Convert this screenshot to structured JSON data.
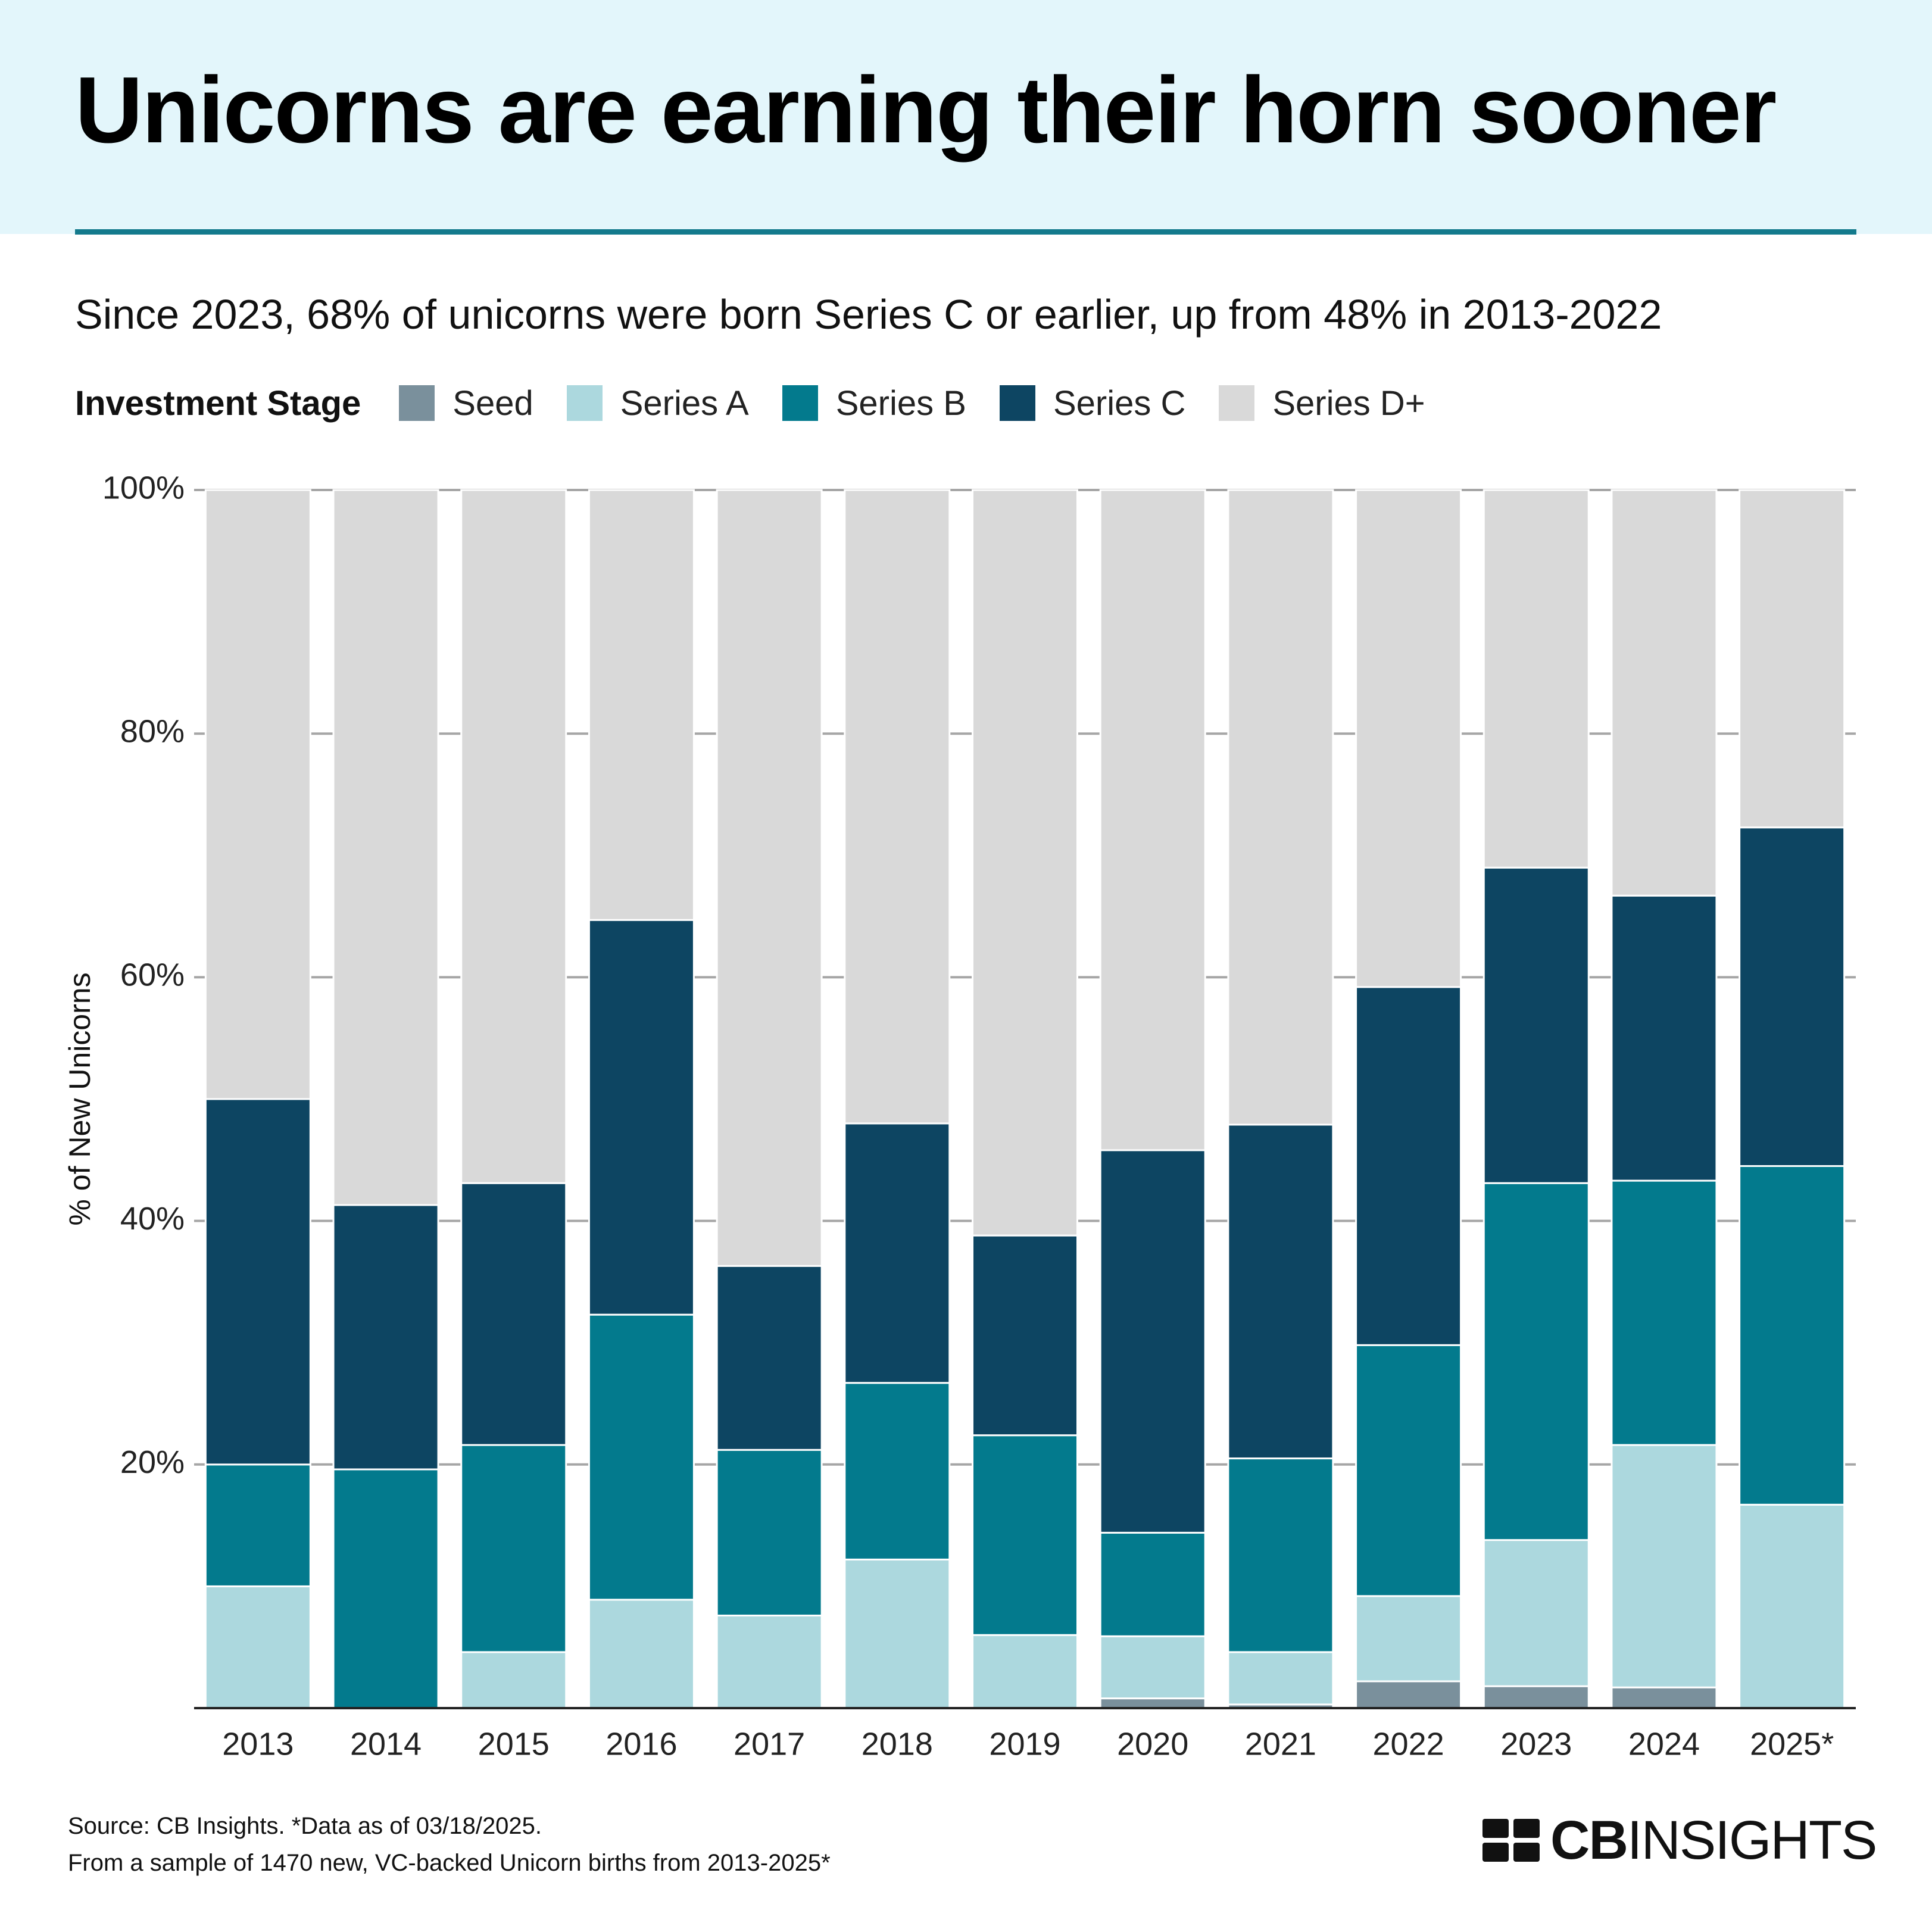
{
  "header": {
    "title": "Unicorns are earning their horn sooner",
    "subtitle": "Since 2023, 68% of unicorns were born Series C or earlier, up from 48% in 2013-2022"
  },
  "legend": {
    "title": "Investment Stage",
    "items": [
      {
        "label": "Seed",
        "color": "#7a909c"
      },
      {
        "label": "Series A",
        "color": "#acd8de"
      },
      {
        "label": "Series B",
        "color": "#037a8d"
      },
      {
        "label": "Series C",
        "color": "#0d4562"
      },
      {
        "label": "Series D+",
        "color": "#d9d9d9"
      }
    ]
  },
  "chart_data": {
    "type": "bar",
    "stacked": true,
    "categories": [
      "2013",
      "2014",
      "2015",
      "2016",
      "2017",
      "2018",
      "2019",
      "2020",
      "2021",
      "2022",
      "2023",
      "2024",
      "2025*"
    ],
    "series": [
      {
        "name": "Seed",
        "color": "#7a909c",
        "values": [
          0,
          0,
          0,
          0,
          0,
          0,
          0,
          0.8,
          0.3,
          2.2,
          1.8,
          1.7,
          0
        ]
      },
      {
        "name": "Series A",
        "color": "#acd8de",
        "values": [
          10,
          0,
          4.6,
          8.9,
          7.6,
          12.2,
          6.0,
          5.1,
          4.3,
          7.0,
          12.0,
          19.9,
          16.7
        ]
      },
      {
        "name": "Series B",
        "color": "#037a8d",
        "values": [
          10,
          19.6,
          17.0,
          23.4,
          13.6,
          14.5,
          16.4,
          8.5,
          15.9,
          20.6,
          29.3,
          21.7,
          27.8
        ]
      },
      {
        "name": "Series C",
        "color": "#0d4562",
        "values": [
          30,
          21.7,
          21.5,
          32.4,
          15.1,
          21.3,
          16.4,
          31.4,
          27.4,
          29.4,
          25.9,
          23.4,
          27.8
        ]
      },
      {
        "name": "Series D+",
        "color": "#d9d9d9",
        "values": [
          50,
          58.7,
          56.9,
          35.3,
          63.7,
          52.0,
          61.2,
          54.2,
          52.1,
          40.8,
          31.0,
          33.3,
          27.7
        ]
      }
    ],
    "ylabel": "% of New Unicorns",
    "ylim": [
      0,
      100
    ],
    "yticks": [
      0,
      20,
      40,
      60,
      80,
      100
    ],
    "ytick_labels": [
      "",
      "20%",
      "40%",
      "60%",
      "80%",
      "100%"
    ],
    "grid": true,
    "legend_position": "top-left"
  },
  "footer": {
    "source_line1": "Source: CB Insights. *Data as of 03/18/2025.",
    "source_line2": "From a sample of 1470 new, VC-backed Unicorn births from 2013-2025*",
    "brand": {
      "bold": "CB",
      "rest": "INSIGHTS"
    }
  }
}
